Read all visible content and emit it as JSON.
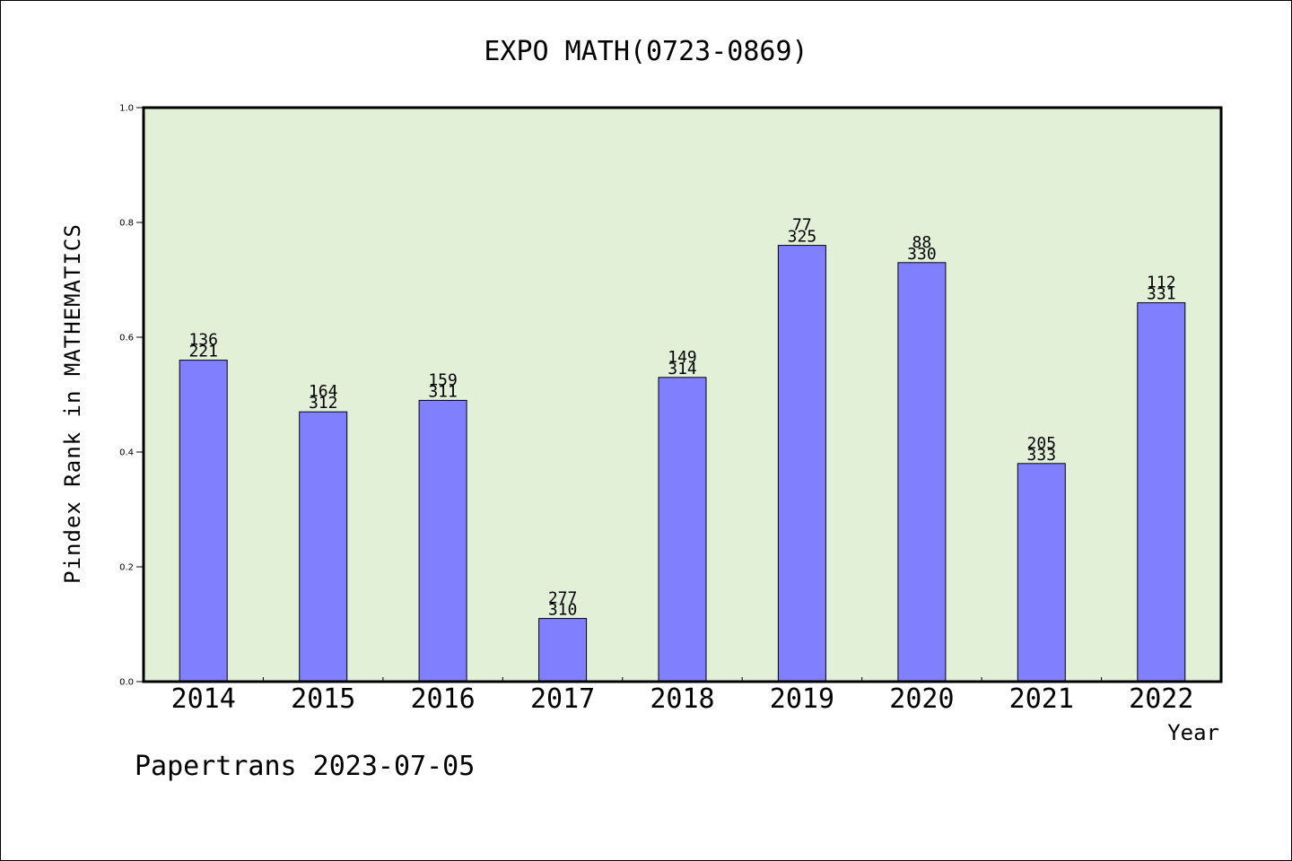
{
  "footer": "Papertrans 2023-07-05",
  "colors": {
    "plot_background": "#e2f0d8",
    "bar_fill": "#8080ff",
    "bar_stroke": "#000000",
    "axis": "#000000"
  },
  "chart_data": {
    "type": "bar",
    "title": "EXPO MATH(0723-0869)",
    "xlabel": "Year",
    "ylabel": "Pindex Rank in MATHEMATICS",
    "ylim": [
      0,
      1.0
    ],
    "yticks": [
      "0.0",
      "0.2",
      "0.4",
      "0.6",
      "0.8",
      "1.0"
    ],
    "grid": false,
    "categories": [
      "2014",
      "2015",
      "2016",
      "2017",
      "2018",
      "2019",
      "2020",
      "2021",
      "2022"
    ],
    "values": [
      0.56,
      0.47,
      0.49,
      0.11,
      0.53,
      0.76,
      0.73,
      0.38,
      0.66
    ],
    "rank_labels": [
      "136",
      "164",
      "159",
      "277",
      "149",
      "77",
      "88",
      "205",
      "112"
    ],
    "total_labels": [
      "221",
      "312",
      "311",
      "310",
      "314",
      "325",
      "330",
      "333",
      "331"
    ]
  }
}
